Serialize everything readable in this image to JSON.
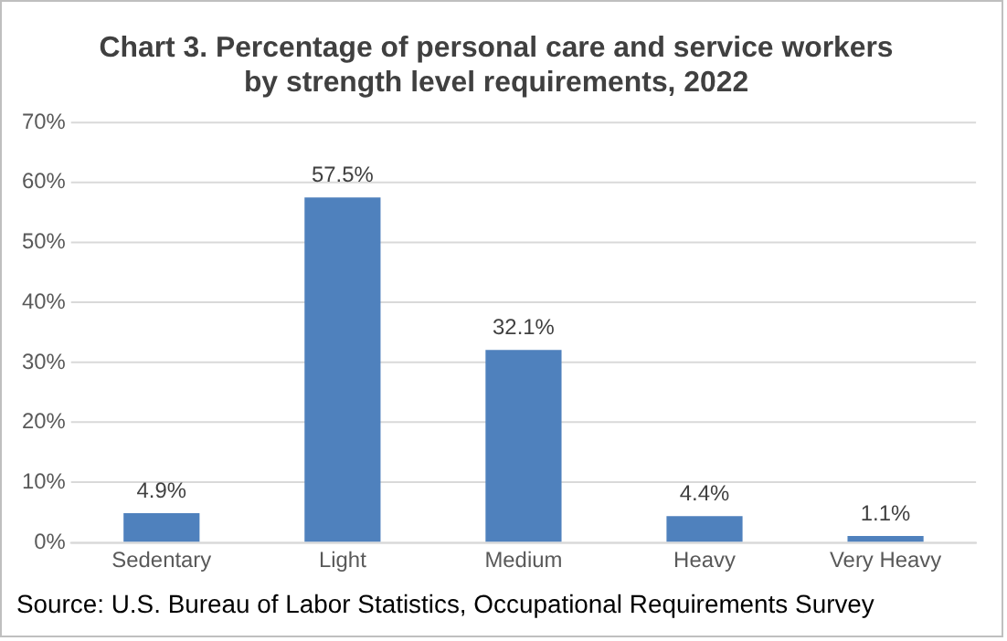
{
  "chart_data": {
    "type": "bar",
    "title": "Chart 3. Percentage of personal care and service workers by strength level requirements, 2022",
    "categories": [
      "Sedentary",
      "Light",
      "Medium",
      "Heavy",
      "Very Heavy"
    ],
    "values": [
      4.9,
      57.5,
      32.1,
      4.4,
      1.1
    ],
    "value_labels": [
      "4.9%",
      "57.5%",
      "32.1%",
      "4.4%",
      "1.1%"
    ],
    "color": "#4f81bd",
    "ylim": [
      0,
      70
    ],
    "yticks": [
      {
        "value": 0,
        "label": "0%"
      },
      {
        "value": 10,
        "label": "10%"
      },
      {
        "value": 20,
        "label": "20%"
      },
      {
        "value": 30,
        "label": "30%"
      },
      {
        "value": 40,
        "label": "40%"
      },
      {
        "value": 50,
        "label": "50%"
      },
      {
        "value": 60,
        "label": "60%"
      },
      {
        "value": 70,
        "label": "70%"
      }
    ],
    "grid": "y",
    "annotations": [
      "Source: U.S. Bureau of Labor Statistics, Occupational Requirements Survey"
    ]
  }
}
